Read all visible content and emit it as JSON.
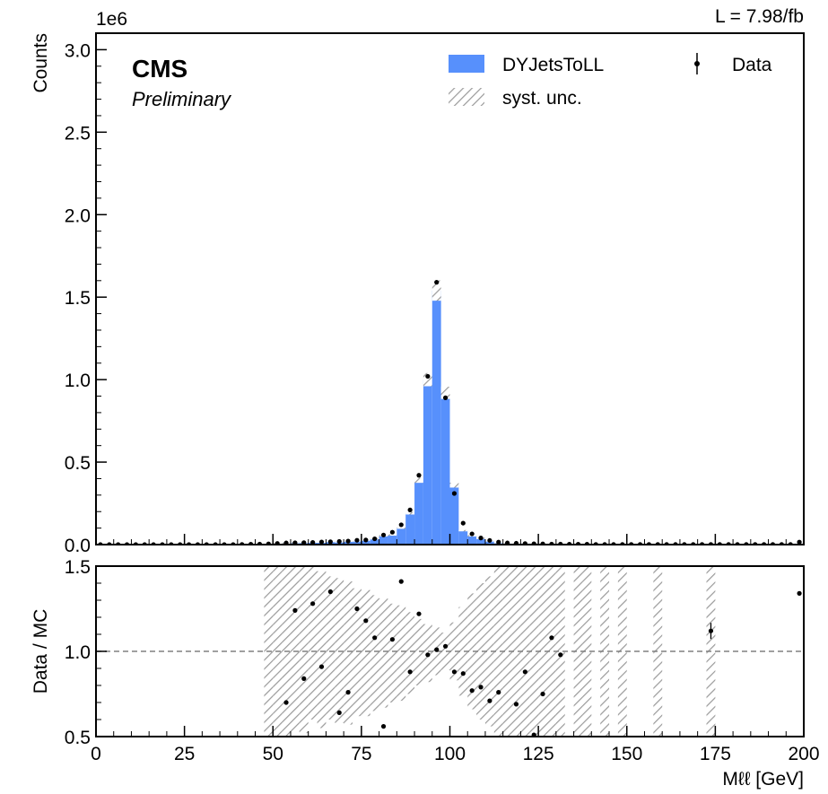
{
  "header": {
    "lumi": "L = 7.98/fb",
    "scale_note": "1e6",
    "experiment": "CMS",
    "status": "Preliminary"
  },
  "legend": {
    "mc_label": "DYJetsToLL",
    "unc_label": "syst. unc.",
    "data_label": "Data"
  },
  "colors": {
    "mc_fill": "#5790fc",
    "unc_hatch": "#9a9a9a",
    "data_marker": "#000000",
    "reference_line": "#808080"
  },
  "chart_data": [
    {
      "type": "bar",
      "panel": "main",
      "ylabel": "Counts",
      "y_multiplier": "1e6",
      "xlim": [
        0,
        200
      ],
      "ylim": [
        0,
        3.1
      ],
      "yticks": [
        0.0,
        0.5,
        1.0,
        1.5,
        2.0,
        2.5,
        3.0
      ],
      "bin_width": 2.5,
      "bin_edges_start": 0,
      "series": [
        {
          "name": "DYJetsToLL",
          "style": "histogram",
          "values": [
            0,
            0,
            0,
            0,
            0,
            0,
            0,
            0,
            0,
            0,
            0,
            0,
            0,
            0,
            0,
            0,
            0.001,
            0.002,
            0.003,
            0.004,
            0.008,
            0.012,
            0.015,
            0.016,
            0.018,
            0.018,
            0.022,
            0.02,
            0.024,
            0.025,
            0.03,
            0.038,
            0.055,
            0.06,
            0.1,
            0.19,
            0.39,
            1.0,
            1.54,
            0.92,
            0.36,
            0.085,
            0.055,
            0.04,
            0.025,
            0.015,
            0.01,
            0.008,
            0.006,
            0.005,
            0.004,
            0.003,
            0.003,
            0.002,
            0.002,
            0.002,
            0.001,
            0.001,
            0.001,
            0.001,
            0.001,
            0.001,
            0.001,
            0.001,
            0.001,
            0.001,
            0.001,
            0.001,
            0.001,
            0.001,
            0.001,
            0.001,
            0.001,
            0.001,
            0.001,
            0.001,
            0.001,
            0.001,
            0.001,
            0.012
          ]
        },
        {
          "name": "Data",
          "style": "points",
          "values": [
            0,
            0,
            0,
            0,
            0,
            0,
            0,
            0,
            0,
            0,
            0,
            0,
            0,
            0,
            0,
            0,
            0.001,
            0.002,
            0.003,
            0.004,
            0.007,
            0.01,
            0.011,
            0.012,
            0.013,
            0.016,
            0.017,
            0.019,
            0.021,
            0.026,
            0.028,
            0.035,
            0.058,
            0.075,
            0.12,
            0.21,
            0.42,
            1.02,
            1.59,
            0.89,
            0.31,
            0.13,
            0.065,
            0.04,
            0.025,
            0.015,
            0.01,
            0.008,
            0.006,
            0.005,
            0.004,
            0.003,
            0.003,
            0.002,
            0.002,
            0.002,
            0.001,
            0.001,
            0.001,
            0.001,
            0.001,
            0.001,
            0.001,
            0.001,
            0.001,
            0.001,
            0.001,
            0.001,
            0.001,
            0.001,
            0.001,
            0.001,
            0.001,
            0.001,
            0.001,
            0.001,
            0.001,
            0.001,
            0.001,
            0.015
          ]
        }
      ],
      "syst_unc_relative": 0.04
    },
    {
      "type": "scatter",
      "panel": "ratio",
      "xlabel": "Mℓℓ [GeV]",
      "ylabel": "Data / MC",
      "xlim": [
        0,
        200
      ],
      "ylim": [
        0.5,
        1.5
      ],
      "xticks": [
        0,
        25,
        50,
        75,
        100,
        125,
        150,
        175,
        200
      ],
      "yticks": [
        0.5,
        1.0,
        1.5
      ],
      "reference_line": 1.0,
      "series": [
        {
          "name": "Data",
          "points": [
            [
              53.75,
              0.7
            ],
            [
              56.25,
              1.24
            ],
            [
              58.75,
              0.84
            ],
            [
              61.25,
              1.28
            ],
            [
              63.75,
              0.91
            ],
            [
              66.25,
              1.35
            ],
            [
              68.75,
              0.64
            ],
            [
              71.25,
              0.76
            ],
            [
              73.75,
              1.25
            ],
            [
              76.25,
              1.18
            ],
            [
              78.75,
              1.08
            ],
            [
              81.25,
              0.56
            ],
            [
              83.75,
              1.07
            ],
            [
              86.25,
              1.41
            ],
            [
              88.75,
              0.88
            ],
            [
              91.25,
              1.22
            ],
            [
              93.75,
              0.98
            ],
            [
              96.25,
              1.01
            ],
            [
              98.75,
              1.03
            ],
            [
              101.25,
              0.88
            ],
            [
              103.75,
              0.87
            ],
            [
              106.25,
              0.77
            ],
            [
              108.75,
              0.79
            ],
            [
              111.25,
              0.71
            ],
            [
              113.75,
              0.76
            ],
            [
              118.75,
              0.69
            ],
            [
              121.25,
              0.88
            ],
            [
              123.75,
              0.51
            ],
            [
              126.25,
              0.75
            ],
            [
              128.75,
              1.08
            ],
            [
              131.25,
              0.98
            ],
            [
              173.75,
              1.12
            ],
            [
              198.75,
              1.34
            ]
          ]
        }
      ],
      "syst_unc_band": [
        [
          48.75,
          0.5,
          1.5
        ],
        [
          51.25,
          0.5,
          1.5
        ],
        [
          53.75,
          0.5,
          1.5
        ],
        [
          56.25,
          0.53,
          1.5
        ],
        [
          58.75,
          0.52,
          1.5
        ],
        [
          61.25,
          0.6,
          1.5
        ],
        [
          63.75,
          0.55,
          1.47
        ],
        [
          66.25,
          0.6,
          1.44
        ],
        [
          68.75,
          0.58,
          1.43
        ],
        [
          71.25,
          0.57,
          1.41
        ],
        [
          73.75,
          0.62,
          1.37
        ],
        [
          76.25,
          0.62,
          1.36
        ],
        [
          78.75,
          0.65,
          1.33
        ],
        [
          81.25,
          0.67,
          1.31
        ],
        [
          83.75,
          0.7,
          1.28
        ],
        [
          86.25,
          0.71,
          1.27
        ],
        [
          88.75,
          0.75,
          1.23
        ],
        [
          91.25,
          0.8,
          1.19
        ],
        [
          93.75,
          0.82,
          1.16
        ],
        [
          96.25,
          0.86,
          1.14
        ],
        [
          98.75,
          0.89,
          1.11
        ],
        [
          101.25,
          0.83,
          1.17
        ],
        [
          103.75,
          0.74,
          1.26
        ],
        [
          106.25,
          0.66,
          1.34
        ],
        [
          108.75,
          0.6,
          1.4
        ],
        [
          111.25,
          0.56,
          1.44
        ],
        [
          113.75,
          0.5,
          1.5
        ],
        [
          116.25,
          0.5,
          1.5
        ],
        [
          118.75,
          0.5,
          1.5
        ],
        [
          121.25,
          0.5,
          1.5
        ],
        [
          123.75,
          0.5,
          1.5
        ],
        [
          126.25,
          0.5,
          1.5
        ],
        [
          128.75,
          0.5,
          1.5
        ],
        [
          131.25,
          0.5,
          1.5
        ],
        [
          136.25,
          0.5,
          1.5
        ],
        [
          138.75,
          0.5,
          1.5
        ],
        [
          143.75,
          0.5,
          1.5
        ],
        [
          148.75,
          0.5,
          1.5
        ],
        [
          158.75,
          0.5,
          1.5
        ],
        [
          173.75,
          0.5,
          1.5
        ]
      ]
    }
  ]
}
